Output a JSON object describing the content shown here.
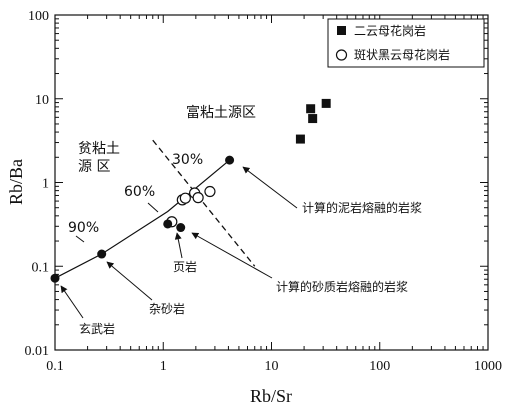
{
  "chart_data": {
    "type": "scatter",
    "x_scale": "log",
    "y_scale": "log",
    "xlim": [
      0.1,
      1000
    ],
    "ylim": [
      0.01,
      100
    ],
    "xlabel": "Rb/Sr",
    "ylabel": "Rb/Ba",
    "x_ticks": [
      {
        "value": 0.1,
        "label": "0.1"
      },
      {
        "value": 1,
        "label": "1"
      },
      {
        "value": 10,
        "label": "10"
      },
      {
        "value": 100,
        "label": "100"
      },
      {
        "value": 1000,
        "label": "1000"
      }
    ],
    "y_ticks": [
      {
        "value": 0.01,
        "label": "0.01"
      },
      {
        "value": 0.1,
        "label": "0.1"
      },
      {
        "value": 1,
        "label": "1"
      },
      {
        "value": 10,
        "label": "10"
      },
      {
        "value": 100,
        "label": "100"
      }
    ],
    "legend": {
      "placement": "top-right",
      "entries": [
        {
          "label": "二云母花岗岩",
          "marker": "filled-square"
        },
        {
          "label": "斑状黑云母花岗岩",
          "marker": "open-circle"
        }
      ]
    },
    "series": [
      {
        "name": "二云母花岗岩",
        "marker": "filled-square",
        "points": [
          [
            18.5,
            3.3
          ],
          [
            23,
            7.6
          ],
          [
            24,
            5.8
          ],
          [
            32,
            8.8
          ]
        ]
      },
      {
        "name": "斑状黑云母花岗岩",
        "marker": "open-circle",
        "points": [
          [
            1.2,
            0.34
          ],
          [
            1.5,
            0.62
          ],
          [
            1.6,
            0.65
          ],
          [
            1.95,
            0.75
          ],
          [
            2.1,
            0.66
          ],
          [
            2.7,
            0.78
          ]
        ]
      },
      {
        "name": "",
        "marker": "filled-circle",
        "points": [
          [
            0.1,
            0.072
          ],
          [
            0.27,
            0.14
          ],
          [
            1.1,
            0.32
          ],
          [
            1.45,
            0.29
          ],
          [
            4.1,
            1.85
          ]
        ]
      }
    ],
    "mixing_line": [
      [
        0.1,
        0.072
      ],
      [
        0.27,
        0.14
      ],
      [
        1.1,
        0.45
      ],
      [
        4.1,
        1.85
      ]
    ],
    "boundary_line": [
      [
        0.8,
        3.2
      ],
      [
        7.0,
        0.1
      ]
    ],
    "annotations": {
      "clay_rich_source": "富粘土源区",
      "clay_poor_source_1": "贫粘土",
      "clay_poor_source_2": "源  区",
      "pct_30": "30%",
      "pct_60": "60%",
      "pct_90": "90%",
      "pelite_melt": "计算的泥岩熔融的岩浆",
      "psammite_melt": "计算的砂质岩熔融的岩浆",
      "shale": "页岩",
      "greywacke": "杂砂岩",
      "basalt": "玄武岩"
    }
  }
}
